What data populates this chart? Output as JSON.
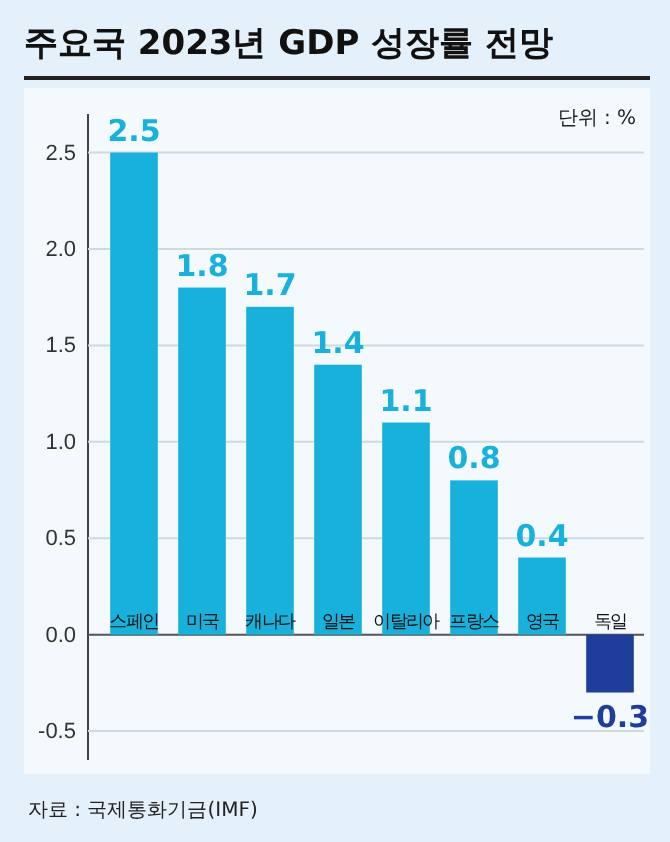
{
  "chart_data": {
    "type": "bar",
    "title": "주요국 2023년 GDP 성장률 전망",
    "categories": [
      "스페인",
      "미국",
      "캐나다",
      "일본",
      "이탈리아",
      "프랑스",
      "영국",
      "독일"
    ],
    "values": [
      2.5,
      1.8,
      1.7,
      1.4,
      1.1,
      0.8,
      0.4,
      -0.3
    ],
    "colors": [
      "#17b1dc",
      "#17b1dc",
      "#17b1dc",
      "#17b1dc",
      "#17b1dc",
      "#17b1dc",
      "#17b1dc",
      "#1f3d9b"
    ],
    "ylim": [
      -0.65,
      2.7
    ],
    "yticks": [
      {
        "value": -0.5,
        "label": "-0.5"
      },
      {
        "value": 0,
        "label": "0.0"
      },
      {
        "value": 0.5,
        "label": "0.5"
      },
      {
        "value": 1,
        "label": "1.0"
      },
      {
        "value": 1.5,
        "label": "1.5"
      },
      {
        "value": 2,
        "label": "2.0"
      },
      {
        "value": 2.5,
        "label": "2.5"
      }
    ],
    "grid": "y",
    "data_labels": true,
    "annotations": [
      "단위 : %",
      "자료 : 국제통화기금(IMF)"
    ]
  }
}
